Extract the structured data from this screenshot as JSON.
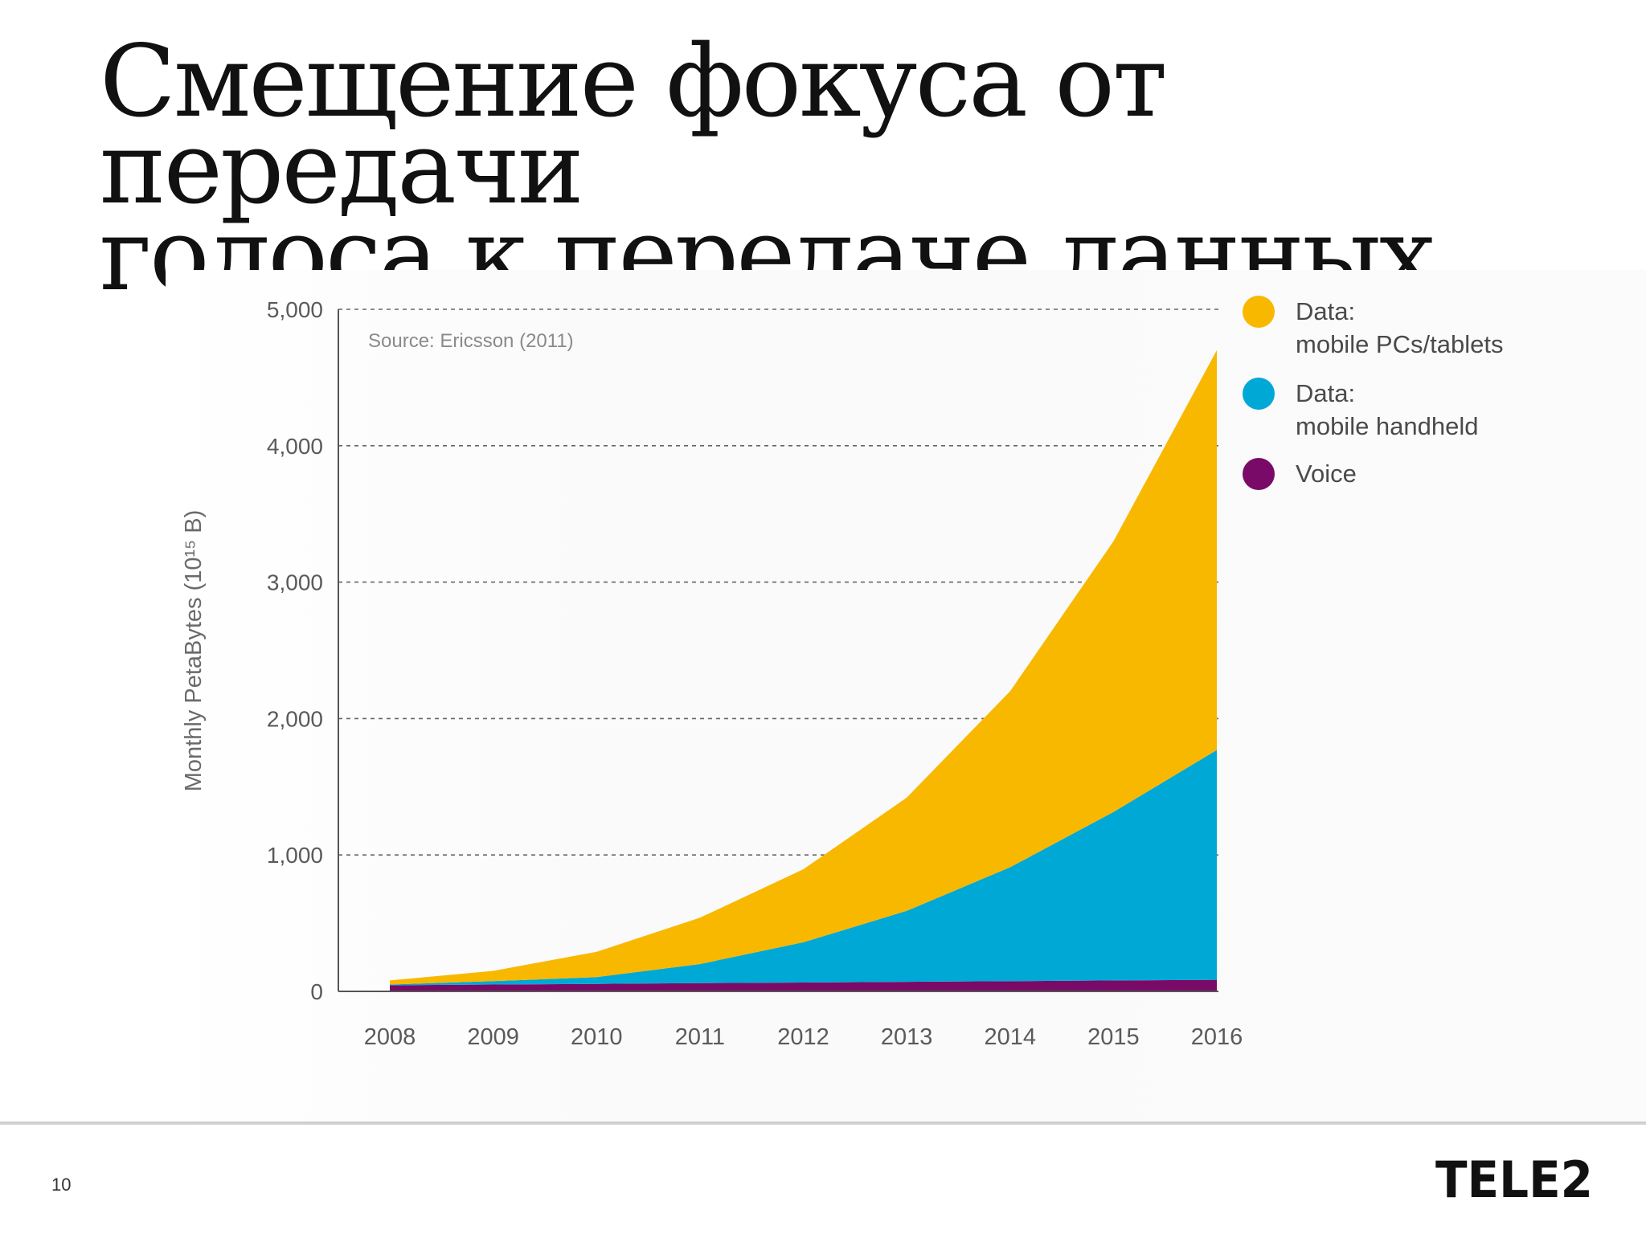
{
  "slide": {
    "title_line1": "Смещение фокуса от передачи",
    "title_line2": "голоса к передаче данных",
    "page_number": "10",
    "brand": "TELE2"
  },
  "chart_data": {
    "type": "area",
    "stacked": true,
    "source_note": "Source: Ericsson (2011)",
    "ylabel": "Monthly PetaBytes (10¹⁵ B)",
    "xlabel": "",
    "x": [
      "2008",
      "2009",
      "2010",
      "2011",
      "2012",
      "2013",
      "2014",
      "2015",
      "2016"
    ],
    "ylim": [
      0,
      5000
    ],
    "yticks": [
      0,
      1000,
      2000,
      3000,
      4000,
      5000
    ],
    "ytick_labels": [
      "0",
      "1,000",
      "2,000",
      "3,000",
      "4,000",
      "5,000"
    ],
    "grid": "horizontal dashed",
    "legend_position": "right",
    "series": [
      {
        "name": "Voice",
        "color": "#7a0a68",
        "values": [
          45,
          50,
          55,
          60,
          65,
          70,
          75,
          80,
          85
        ]
      },
      {
        "name": "Data: mobile handheld",
        "color": "#00a8d6",
        "values": [
          5,
          25,
          50,
          140,
          295,
          520,
          835,
          1235,
          1685
        ]
      },
      {
        "name": "Data: mobile PCs/tablets",
        "color": "#f9b800",
        "values": [
          30,
          75,
          185,
          340,
          535,
          830,
          1290,
          1985,
          2930
        ]
      }
    ],
    "legend": [
      {
        "line1": "Data:",
        "line2": "mobile PCs/tablets",
        "color": "#f9b800"
      },
      {
        "line1": "Data:",
        "line2": "mobile handheld",
        "color": "#00a8d6"
      },
      {
        "line1": "Voice",
        "line2": "",
        "color": "#7a0a68"
      }
    ]
  }
}
